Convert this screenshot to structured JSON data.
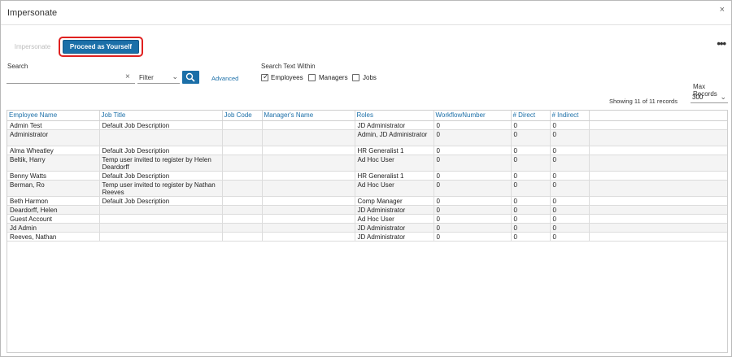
{
  "dialog": {
    "title": "Impersonate",
    "close_icon": "×"
  },
  "toolbar": {
    "impersonate_label": "Impersonate",
    "proceed_label": "Proceed as Yourself",
    "more_icon": "•••"
  },
  "search": {
    "label": "Search",
    "value": "",
    "placeholder": "",
    "clear_icon": "×",
    "filter_value": "Filter",
    "advanced_label": "Advanced"
  },
  "search_within": {
    "label": "Search Text Within",
    "options": [
      {
        "label": "Employees",
        "checked": true
      },
      {
        "label": "Managers",
        "checked": false
      },
      {
        "label": "Jobs",
        "checked": false
      }
    ]
  },
  "records": {
    "max_label": "Max Records",
    "max_value": "300",
    "showing_text": "Showing 11 of 11 records"
  },
  "table": {
    "columns": [
      "Employee Name",
      "Job Title",
      "Job Code",
      "Manager's Name",
      "Roles",
      "WorkflowNumber",
      "# Direct",
      "# Indirect",
      ""
    ],
    "rows": [
      [
        "Admin Test",
        "Default Job Description",
        "",
        "",
        "JD Administrator",
        "0",
        "0",
        "0"
      ],
      [
        "Administrator",
        "",
        "",
        "",
        "Admin, JD Administrator",
        "0",
        "0",
        "0"
      ],
      [
        "Alma Wheatley",
        "Default Job Description",
        "",
        "",
        "HR Generalist 1",
        "0",
        "0",
        "0"
      ],
      [
        "Beltik, Harry",
        "Temp user invited to register by Helen Deardorff",
        "",
        "",
        "Ad Hoc User",
        "0",
        "0",
        "0"
      ],
      [
        "Benny Watts",
        "Default Job Description",
        "",
        "",
        "HR Generalist 1",
        "0",
        "0",
        "0"
      ],
      [
        "Berman, Ro",
        "Temp user invited to register by Nathan Reeves",
        "",
        "",
        "Ad Hoc User",
        "0",
        "0",
        "0"
      ],
      [
        "Beth Harmon",
        "Default Job Description",
        "",
        "",
        "Comp Manager",
        "0",
        "0",
        "0"
      ],
      [
        "Deardorff, Helen",
        "",
        "",
        "",
        "JD Administrator",
        "0",
        "0",
        "0"
      ],
      [
        "Guest Account",
        "",
        "",
        "",
        "Ad Hoc User",
        "0",
        "0",
        "0"
      ],
      [
        "Jd Admin",
        "",
        "",
        "",
        "JD Administrator",
        "0",
        "0",
        "0"
      ],
      [
        "Reeves, Nathan",
        "",
        "",
        "",
        "JD Administrator",
        "0",
        "0",
        "0"
      ]
    ]
  },
  "colors": {
    "accent": "#1b6fa8",
    "highlight": "#e0201f"
  }
}
